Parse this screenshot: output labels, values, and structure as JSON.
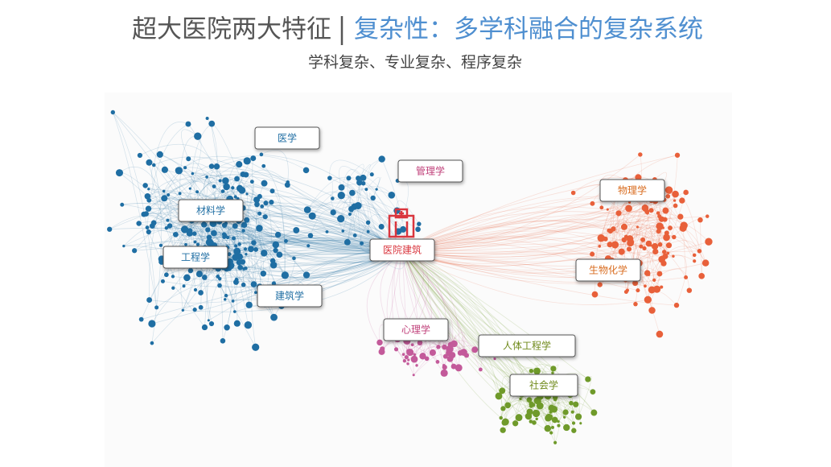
{
  "header": {
    "title": "超大医院两大特征",
    "highlight": "复杂性：多学科融合的复杂系统",
    "subtitle": "学科复杂、专业复杂、程序复杂"
  },
  "nodes": [
    {
      "label": "医学"
    },
    {
      "label": "管理学"
    },
    {
      "label": "材料学"
    },
    {
      "label": "工程学"
    },
    {
      "label": "建筑学"
    },
    {
      "label": "医院建筑"
    },
    {
      "label": "物理学"
    },
    {
      "label": "生物化学"
    },
    {
      "label": "心理学"
    },
    {
      "label": "人体工程学"
    },
    {
      "label": "社会学"
    }
  ]
}
